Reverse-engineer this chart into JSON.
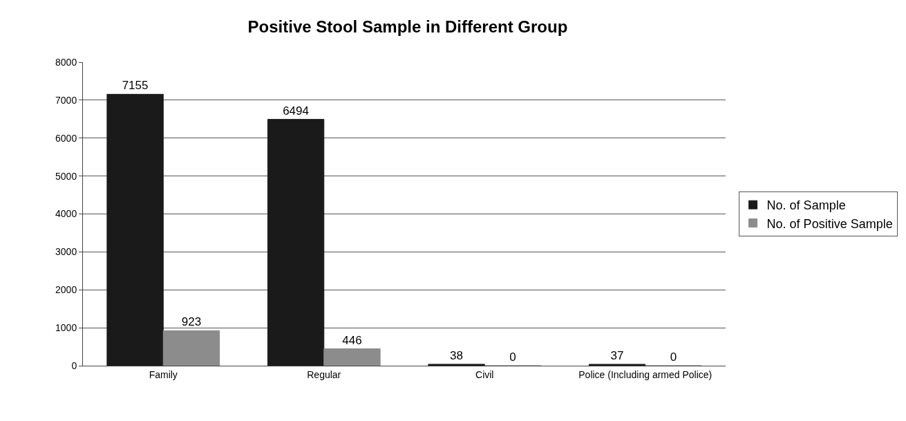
{
  "chart_data": {
    "type": "bar",
    "title": "Positive Stool Sample in Different Group",
    "categories": [
      "Family",
      "Regular",
      "Civil",
      "Police (Including armed Police)"
    ],
    "series": [
      {
        "name": "No. of Sample",
        "color": "#1a1a1a",
        "values": [
          7155,
          6494,
          38,
          37
        ]
      },
      {
        "name": "No. of Positive Sample",
        "color": "#8c8c8c",
        "values": [
          923,
          446,
          0,
          0
        ]
      }
    ],
    "ylim": [
      0,
      8000
    ],
    "yticks": [
      0,
      1000,
      2000,
      3000,
      4000,
      5000,
      6000,
      7000,
      8000
    ],
    "grid": "y",
    "legend": "right",
    "data_labels": true
  }
}
